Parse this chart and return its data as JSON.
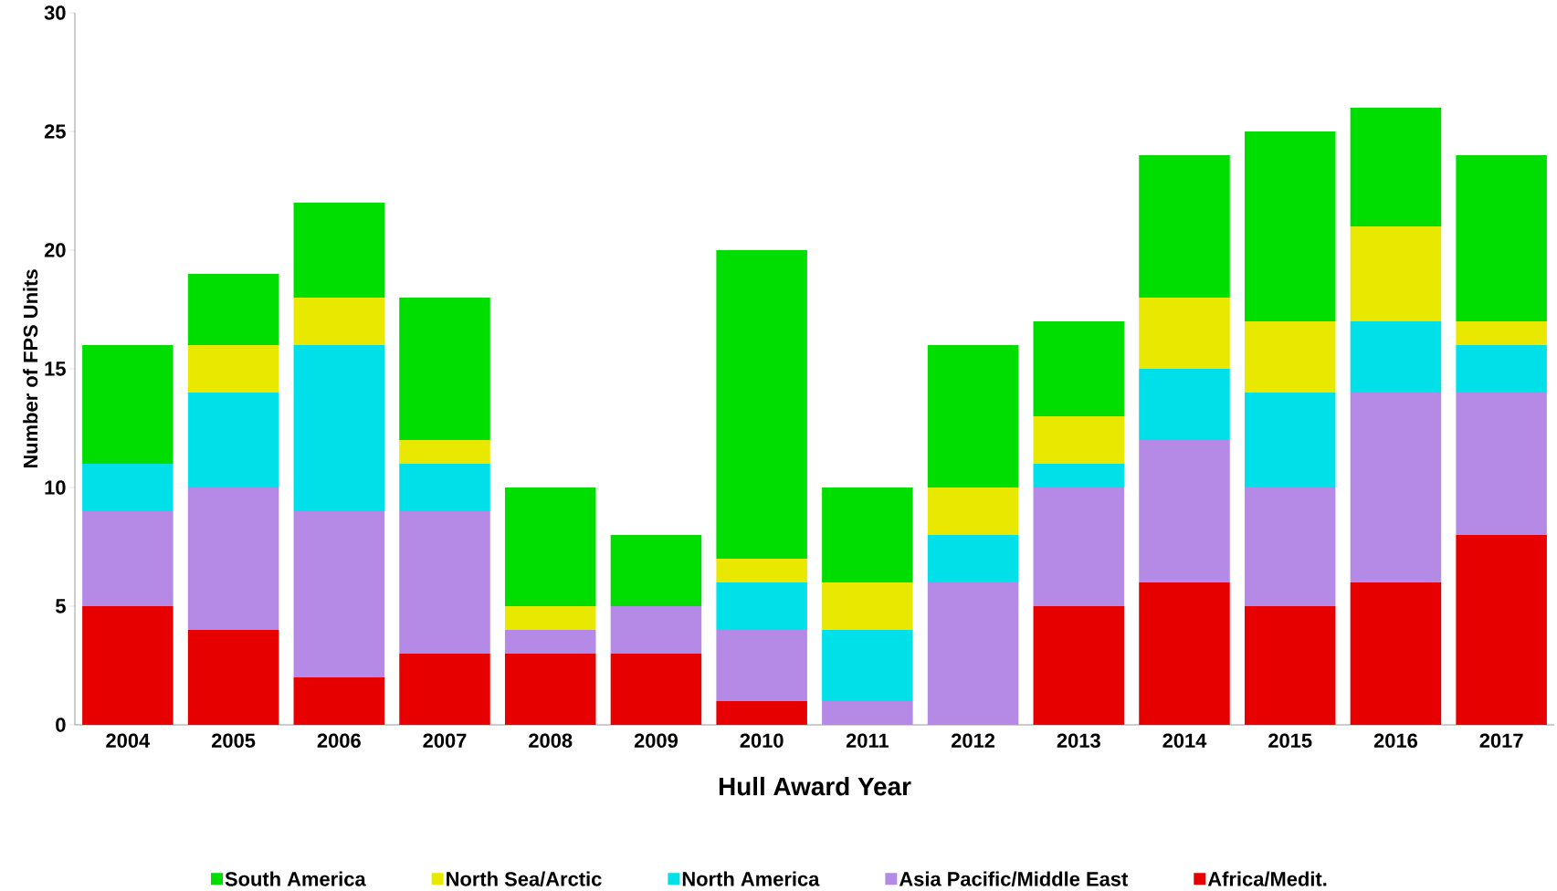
{
  "chart_data": {
    "type": "bar",
    "stacked": true,
    "xlabel": "Hull Award Year",
    "ylabel": "Number of FPS Units",
    "categories": [
      "2004",
      "2005",
      "2006",
      "2007",
      "2008",
      "2009",
      "2010",
      "2011",
      "2012",
      "2013",
      "2014",
      "2015",
      "2016",
      "2017"
    ],
    "ylim": [
      0,
      30
    ],
    "yticks": [
      0,
      5,
      10,
      15,
      20,
      25,
      30
    ],
    "grid": false,
    "legend": "bottom",
    "series": [
      {
        "name": "Africa/Medit.",
        "color": "#e60000",
        "values": [
          5,
          4,
          2,
          3,
          3,
          3,
          1,
          0,
          0,
          5,
          6,
          5,
          6,
          8
        ]
      },
      {
        "name": "Asia Pacific/Middle East",
        "color": "#b48ae6",
        "values": [
          4,
          6,
          7,
          6,
          1,
          2,
          3,
          1,
          6,
          5,
          6,
          5,
          8,
          6
        ]
      },
      {
        "name": "North America",
        "color": "#00e0e8",
        "values": [
          2,
          4,
          7,
          2,
          0,
          0,
          2,
          3,
          2,
          1,
          3,
          4,
          3,
          2
        ]
      },
      {
        "name": "North Sea/Arctic",
        "color": "#e8e800",
        "values": [
          0,
          2,
          2,
          1,
          1,
          0,
          1,
          2,
          2,
          2,
          3,
          3,
          4,
          1
        ]
      },
      {
        "name": "South America",
        "color": "#00dd00",
        "values": [
          5,
          3,
          4,
          6,
          5,
          3,
          13,
          4,
          6,
          4,
          6,
          8,
          5,
          7
        ]
      }
    ]
  }
}
